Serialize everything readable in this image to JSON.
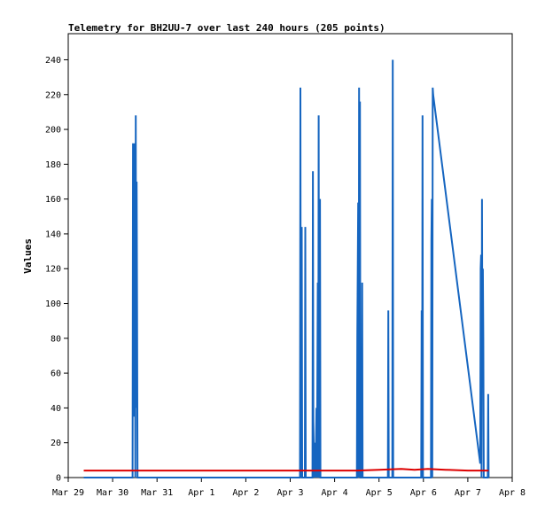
{
  "chart_data": {
    "type": "line",
    "title": "Telemetry for BH2UU-7 over last 240 hours (205 points)",
    "xlabel": "",
    "ylabel": "Values",
    "x_ticks": [
      "Mar 29",
      "Mar 30",
      "Mar 31",
      "Apr 1",
      "Apr 2",
      "Apr 3",
      "Apr 4",
      "Apr 5",
      "Apr 6",
      "Apr 7",
      "Apr 8"
    ],
    "xlim": [
      0,
      10
    ],
    "ylim": [
      0,
      255
    ],
    "y_ticks": [
      0,
      20,
      40,
      60,
      80,
      100,
      120,
      140,
      160,
      180,
      200,
      220,
      240
    ],
    "grid": false,
    "legend": "none",
    "series": [
      {
        "color": "#1565c0",
        "points": [
          [
            0.35,
            0
          ],
          [
            1.45,
            0
          ],
          [
            1.46,
            192
          ],
          [
            1.47,
            35
          ],
          [
            1.48,
            173
          ],
          [
            1.49,
            60
          ],
          [
            1.5,
            192
          ],
          [
            1.51,
            0
          ],
          [
            1.52,
            208
          ],
          [
            1.53,
            40
          ],
          [
            1.54,
            170
          ],
          [
            1.55,
            96
          ],
          [
            1.56,
            0
          ],
          [
            5.22,
            0
          ],
          [
            5.23,
            224
          ],
          [
            5.24,
            0
          ],
          [
            5.26,
            144
          ],
          [
            5.27,
            0
          ],
          [
            5.33,
            0
          ],
          [
            5.34,
            144
          ],
          [
            5.35,
            0
          ],
          [
            5.45,
            0
          ],
          [
            5.5,
            0
          ],
          [
            5.51,
            176
          ],
          [
            5.52,
            32
          ],
          [
            5.54,
            0
          ],
          [
            5.56,
            20
          ],
          [
            5.57,
            0
          ],
          [
            5.59,
            40
          ],
          [
            5.6,
            0
          ],
          [
            5.61,
            56
          ],
          [
            5.62,
            112
          ],
          [
            5.63,
            0
          ],
          [
            5.64,
            208
          ],
          [
            5.65,
            0
          ],
          [
            5.66,
            100
          ],
          [
            5.67,
            160
          ],
          [
            5.68,
            0
          ],
          [
            6.5,
            0
          ],
          [
            6.51,
            82
          ],
          [
            6.52,
            120
          ],
          [
            6.53,
            158
          ],
          [
            6.54,
            0
          ],
          [
            6.55,
            224
          ],
          [
            6.56,
            0
          ],
          [
            6.57,
            216
          ],
          [
            6.58,
            0
          ],
          [
            6.61,
            0
          ],
          [
            6.62,
            112
          ],
          [
            6.63,
            0
          ],
          [
            6.65,
            0
          ],
          [
            7.2,
            0
          ],
          [
            7.21,
            96
          ],
          [
            7.22,
            0
          ],
          [
            7.3,
            0
          ],
          [
            7.31,
            240
          ],
          [
            7.32,
            0
          ],
          [
            7.95,
            0
          ],
          [
            7.96,
            96
          ],
          [
            7.97,
            0
          ],
          [
            7.98,
            208
          ],
          [
            7.99,
            0
          ],
          [
            8.17,
            0
          ],
          [
            8.18,
            136
          ],
          [
            8.19,
            160
          ],
          [
            8.2,
            0
          ],
          [
            8.21,
            224
          ],
          [
            8.22,
            220
          ],
          [
            9.28,
            8
          ],
          [
            9.29,
            120
          ],
          [
            9.3,
            128
          ],
          [
            9.31,
            0
          ],
          [
            9.32,
            160
          ],
          [
            9.33,
            60
          ],
          [
            9.34,
            120
          ],
          [
            9.35,
            80
          ],
          [
            9.36,
            0
          ],
          [
            9.45,
            0
          ],
          [
            9.46,
            48
          ],
          [
            9.47,
            0
          ]
        ]
      },
      {
        "color": "#dd0000",
        "points": [
          [
            0.35,
            4
          ],
          [
            5.0,
            4
          ],
          [
            6.5,
            4
          ],
          [
            7.0,
            4.5
          ],
          [
            7.5,
            5
          ],
          [
            7.8,
            4.5
          ],
          [
            8.1,
            5
          ],
          [
            8.5,
            4.5
          ],
          [
            9.0,
            4
          ],
          [
            9.47,
            4
          ]
        ]
      }
    ]
  }
}
